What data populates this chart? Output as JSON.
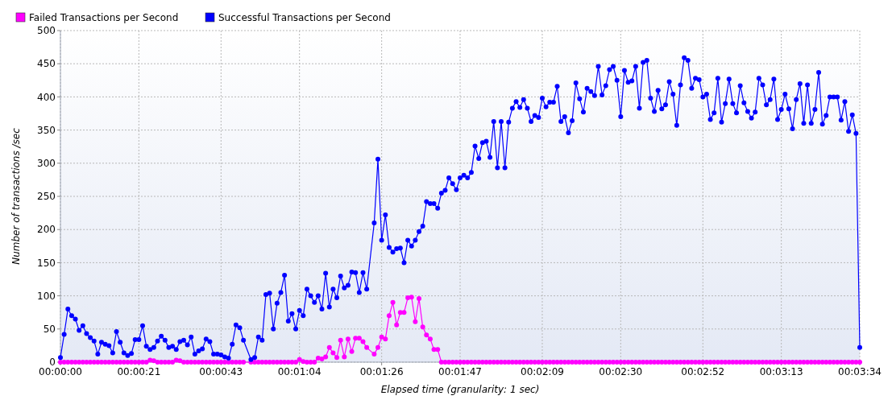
{
  "chart_data": {
    "type": "line",
    "xlabel": "Elapsed time (granularity: 1 sec)",
    "ylabel": "Number of transactions /sec",
    "xlim": [
      0,
      214
    ],
    "ylim": [
      0,
      500
    ],
    "yticks": [
      0,
      50,
      100,
      150,
      200,
      250,
      300,
      350,
      400,
      450,
      500
    ],
    "xticks": [
      {
        "value": 0,
        "label": "00:00:00"
      },
      {
        "value": 21,
        "label": "00:00:21"
      },
      {
        "value": 43,
        "label": "00:00:43"
      },
      {
        "value": 64,
        "label": "00:01:04"
      },
      {
        "value": 86,
        "label": "00:01:26"
      },
      {
        "value": 107,
        "label": "00:01:47"
      },
      {
        "value": 129,
        "label": "00:02:09"
      },
      {
        "value": 150,
        "label": "00:02:30"
      },
      {
        "value": 172,
        "label": "00:02:52"
      },
      {
        "value": 193,
        "label": "00:03:13"
      },
      {
        "value": 214,
        "label": "00:03:34"
      }
    ],
    "grid": true,
    "legend": "top left",
    "marker": "circle",
    "line_style": "solid",
    "x": [
      0,
      1,
      2,
      3,
      4,
      5,
      6,
      7,
      8,
      9,
      10,
      11,
      12,
      13,
      14,
      15,
      16,
      17,
      18,
      19,
      20,
      21,
      22,
      23,
      24,
      25,
      26,
      27,
      28,
      29,
      30,
      31,
      32,
      33,
      34,
      35,
      36,
      37,
      38,
      39,
      40,
      41,
      42,
      43,
      44,
      45,
      46,
      47,
      48,
      49,
      51,
      52,
      53,
      54,
      55,
      56,
      57,
      58,
      59,
      60,
      61,
      62,
      63,
      64,
      65,
      66,
      67,
      68,
      69,
      70,
      71,
      72,
      73,
      74,
      75,
      76,
      77,
      78,
      79,
      80,
      81,
      82,
      84,
      85,
      86,
      87,
      88,
      89,
      90,
      91,
      92,
      93,
      94,
      95,
      96,
      97,
      98,
      99,
      100,
      101,
      102,
      103,
      104,
      105,
      106,
      107,
      108,
      109,
      110,
      111,
      112,
      113,
      114,
      115,
      116,
      117,
      118,
      119,
      120,
      121,
      122,
      123,
      124,
      125,
      126,
      127,
      128,
      129,
      130,
      131,
      132,
      133,
      134,
      135,
      136,
      137,
      138,
      139,
      140,
      141,
      142,
      143,
      144,
      145,
      146,
      147,
      148,
      149,
      150,
      151,
      152,
      153,
      154,
      155,
      156,
      157,
      158,
      159,
      160,
      161,
      162,
      163,
      164,
      165,
      166,
      167,
      168,
      169,
      170,
      171,
      172,
      173,
      174,
      175,
      176,
      177,
      178,
      179,
      180,
      181,
      182,
      183,
      184,
      185,
      186,
      187,
      188,
      189,
      190,
      191,
      192,
      193,
      194,
      195,
      196,
      197,
      198,
      199,
      200,
      201,
      202,
      203,
      204,
      205,
      206,
      207,
      208,
      209,
      210,
      211,
      212,
      213,
      214
    ],
    "series": [
      {
        "name": "Failed Transactions per Second",
        "color": "#ff00ff",
        "values": [
          0,
          0,
          0,
          0,
          0,
          0,
          0,
          0,
          0,
          0,
          0,
          0,
          0,
          0,
          0,
          0,
          0,
          0,
          0,
          0,
          0,
          0,
          0,
          0,
          3,
          2,
          0,
          0,
          0,
          0,
          0,
          3,
          2,
          0,
          0,
          0,
          0,
          0,
          0,
          0,
          0,
          0,
          0,
          0,
          0,
          0,
          0,
          0,
          0,
          0,
          0,
          0,
          0,
          0,
          0,
          0,
          0,
          0,
          0,
          0,
          0,
          0,
          0,
          4,
          1,
          0,
          0,
          0,
          6,
          5,
          8,
          22,
          14,
          7,
          33,
          8,
          35,
          16,
          36,
          36,
          31,
          22,
          12,
          22,
          38,
          35,
          70,
          90,
          56,
          75,
          75,
          97,
          98,
          61,
          96,
          53,
          41,
          35,
          19,
          19,
          0,
          0,
          0,
          0,
          0,
          0,
          0,
          0,
          0,
          0,
          0,
          0,
          0,
          0,
          0,
          0,
          0,
          0,
          0,
          0,
          0,
          0,
          0,
          0,
          0,
          0,
          0,
          0,
          0,
          0,
          0,
          0,
          0,
          0,
          0,
          0,
          0,
          0,
          0,
          0,
          0,
          0,
          0,
          0,
          0,
          0,
          0,
          0,
          0,
          0,
          0,
          0,
          0,
          0,
          0,
          0,
          0,
          0,
          0,
          0,
          0,
          0,
          0,
          0,
          0,
          0,
          0,
          0,
          0,
          0,
          0,
          0,
          0,
          0,
          0,
          0,
          0,
          0,
          0,
          0,
          0,
          0,
          0,
          0,
          0,
          0,
          0,
          0,
          0,
          0,
          0,
          0,
          0,
          0,
          0,
          0,
          0,
          0,
          0,
          0,
          0,
          0,
          0,
          0,
          0,
          0,
          0,
          0,
          0,
          0,
          0,
          0,
          0
        ]
      },
      {
        "name": "Successful Transactions per Second",
        "color": "#0000ff",
        "values": [
          7,
          42,
          80,
          70,
          65,
          48,
          55,
          43,
          37,
          32,
          12,
          30,
          27,
          25,
          14,
          46,
          30,
          14,
          10,
          13,
          34,
          34,
          55,
          24,
          19,
          22,
          32,
          39,
          33,
          22,
          24,
          19,
          31,
          33,
          26,
          38,
          12,
          17,
          20,
          35,
          31,
          12,
          12,
          11,
          8,
          6,
          27,
          56,
          52,
          33,
          4,
          7,
          38,
          33,
          102,
          104,
          50,
          89,
          105,
          131,
          62,
          73,
          50,
          78,
          70,
          110,
          100,
          90,
          100,
          80,
          134,
          83,
          110,
          97,
          130,
          112,
          116,
          136,
          135,
          105,
          135,
          110,
          210,
          306,
          184,
          222,
          173,
          166,
          171,
          172,
          150,
          184,
          175,
          184,
          197,
          205,
          242,
          239,
          239,
          232,
          255,
          259,
          278,
          269,
          260,
          278,
          282,
          278,
          286,
          326,
          307,
          331,
          333,
          309,
          363,
          293,
          363,
          293,
          362,
          383,
          393,
          384,
          396,
          383,
          363,
          372,
          369,
          398,
          385,
          392,
          392,
          416,
          363,
          370,
          346,
          364,
          421,
          397,
          377,
          413,
          408,
          402,
          446,
          403,
          417,
          441,
          446,
          425,
          370,
          440,
          422,
          424,
          446,
          383,
          452,
          455,
          398,
          378,
          410,
          382,
          388,
          423,
          404,
          357,
          418,
          459,
          455,
          413,
          428,
          426,
          400,
          404,
          366,
          376,
          428,
          362,
          390,
          427,
          390,
          376,
          417,
          391,
          378,
          368,
          377,
          428,
          418,
          388,
          396,
          427,
          366,
          381,
          404,
          382,
          352,
          396,
          420,
          360,
          418,
          360,
          381,
          437,
          359,
          372,
          400,
          400,
          400,
          365,
          393,
          348,
          373,
          345,
          22
        ]
      }
    ]
  }
}
